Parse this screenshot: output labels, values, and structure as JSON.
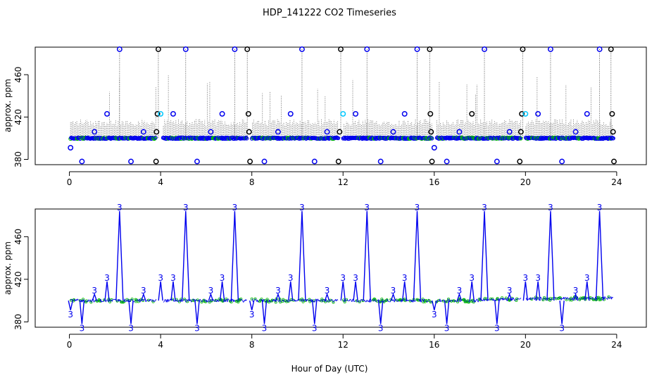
{
  "title": "HDP_141222  CO2 Timeseries",
  "chart_data": [
    {
      "type": "scatter",
      "name": "top-panel",
      "title": "HDP_141222  CO2 Timeseries",
      "xlabel": "",
      "ylabel": "approx. ppm",
      "xlim": [
        -1.5,
        25.3
      ],
      "ylim": [
        375,
        486
      ],
      "xticks": [
        0,
        4,
        8,
        12,
        16,
        20,
        24
      ],
      "yticks": [
        380,
        420,
        460
      ],
      "base_value": 400,
      "gaps": [
        [
          3.8,
          4.1
        ],
        [
          7.8,
          8.0
        ],
        [
          11.8,
          12.0
        ],
        [
          15.9,
          16.1
        ],
        [
          19.8,
          20.0
        ]
      ],
      "points": [
        {
          "x": 0.05,
          "y": 391,
          "color": "#0000ee"
        },
        {
          "x": 0.55,
          "y": 378,
          "color": "#0000ee"
        },
        {
          "x": 1.1,
          "y": 406,
          "color": "#0000ee"
        },
        {
          "x": 1.65,
          "y": 423,
          "color": "#0000ee"
        },
        {
          "x": 2.2,
          "y": 484,
          "color": "#0000ee"
        },
        {
          "x": 2.7,
          "y": 378,
          "color": "#0000ee"
        },
        {
          "x": 3.25,
          "y": 406,
          "color": "#0000ee"
        },
        {
          "x": 3.8,
          "y": 378,
          "color": "#000000"
        },
        {
          "x": 3.82,
          "y": 406,
          "color": "#000000"
        },
        {
          "x": 3.86,
          "y": 423,
          "color": "#000000"
        },
        {
          "x": 3.9,
          "y": 484,
          "color": "#000000"
        },
        {
          "x": 4.0,
          "y": 423,
          "color": "#00c8ff"
        },
        {
          "x": 4.55,
          "y": 423,
          "color": "#0000ee"
        },
        {
          "x": 5.1,
          "y": 484,
          "color": "#0000ee"
        },
        {
          "x": 5.6,
          "y": 378,
          "color": "#0000ee"
        },
        {
          "x": 6.2,
          "y": 406,
          "color": "#0000ee"
        },
        {
          "x": 6.7,
          "y": 423,
          "color": "#0000ee"
        },
        {
          "x": 7.25,
          "y": 484,
          "color": "#0000ee"
        },
        {
          "x": 7.8,
          "y": 484,
          "color": "#000000"
        },
        {
          "x": 7.85,
          "y": 423,
          "color": "#000000"
        },
        {
          "x": 7.88,
          "y": 406,
          "color": "#000000"
        },
        {
          "x": 7.92,
          "y": 378,
          "color": "#000000"
        },
        {
          "x": 8.55,
          "y": 378,
          "color": "#0000ee"
        },
        {
          "x": 9.15,
          "y": 406,
          "color": "#0000ee"
        },
        {
          "x": 9.7,
          "y": 423,
          "color": "#0000ee"
        },
        {
          "x": 10.2,
          "y": 484,
          "color": "#0000ee"
        },
        {
          "x": 10.75,
          "y": 378,
          "color": "#0000ee"
        },
        {
          "x": 11.3,
          "y": 406,
          "color": "#0000ee"
        },
        {
          "x": 11.8,
          "y": 378,
          "color": "#000000"
        },
        {
          "x": 11.85,
          "y": 406,
          "color": "#000000"
        },
        {
          "x": 11.9,
          "y": 484,
          "color": "#000000"
        },
        {
          "x": 12.0,
          "y": 423,
          "color": "#00c8ff"
        },
        {
          "x": 12.55,
          "y": 423,
          "color": "#0000ee"
        },
        {
          "x": 13.05,
          "y": 484,
          "color": "#0000ee"
        },
        {
          "x": 13.65,
          "y": 378,
          "color": "#0000ee"
        },
        {
          "x": 14.2,
          "y": 406,
          "color": "#0000ee"
        },
        {
          "x": 14.7,
          "y": 423,
          "color": "#0000ee"
        },
        {
          "x": 15.25,
          "y": 484,
          "color": "#0000ee"
        },
        {
          "x": 15.8,
          "y": 484,
          "color": "#000000"
        },
        {
          "x": 15.83,
          "y": 423,
          "color": "#000000"
        },
        {
          "x": 15.86,
          "y": 406,
          "color": "#000000"
        },
        {
          "x": 15.9,
          "y": 378,
          "color": "#000000"
        },
        {
          "x": 16.0,
          "y": 391,
          "color": "#0000ee"
        },
        {
          "x": 16.55,
          "y": 378,
          "color": "#0000ee"
        },
        {
          "x": 17.1,
          "y": 406,
          "color": "#0000ee"
        },
        {
          "x": 17.65,
          "y": 423,
          "color": "#000000"
        },
        {
          "x": 18.2,
          "y": 484,
          "color": "#0000ee"
        },
        {
          "x": 18.75,
          "y": 378,
          "color": "#0000ee"
        },
        {
          "x": 19.3,
          "y": 406,
          "color": "#0000ee"
        },
        {
          "x": 19.75,
          "y": 378,
          "color": "#000000"
        },
        {
          "x": 19.8,
          "y": 406,
          "color": "#000000"
        },
        {
          "x": 19.84,
          "y": 423,
          "color": "#000000"
        },
        {
          "x": 19.88,
          "y": 484,
          "color": "#000000"
        },
        {
          "x": 20.0,
          "y": 423,
          "color": "#00c8ff"
        },
        {
          "x": 20.55,
          "y": 423,
          "color": "#0000ee"
        },
        {
          "x": 21.1,
          "y": 484,
          "color": "#0000ee"
        },
        {
          "x": 21.6,
          "y": 378,
          "color": "#0000ee"
        },
        {
          "x": 22.2,
          "y": 406,
          "color": "#0000ee"
        },
        {
          "x": 22.7,
          "y": 423,
          "color": "#0000ee"
        },
        {
          "x": 23.25,
          "y": 484,
          "color": "#0000ee"
        },
        {
          "x": 23.75,
          "y": 484,
          "color": "#000000"
        },
        {
          "x": 23.8,
          "y": 423,
          "color": "#000000"
        },
        {
          "x": 23.84,
          "y": 406,
          "color": "#000000"
        },
        {
          "x": 23.88,
          "y": 378,
          "color": "#000000"
        }
      ]
    },
    {
      "type": "line",
      "name": "bottom-panel",
      "title": "",
      "xlabel": "Hour of Day (UTC)",
      "ylabel": "approx. ppm",
      "xlim": [
        -1.5,
        25.3
      ],
      "ylim": [
        375,
        486
      ],
      "xticks": [
        0,
        4,
        8,
        12,
        16,
        20,
        24
      ],
      "yticks": [
        380,
        420,
        460
      ],
      "marker": "3",
      "base_value": 400,
      "labels": [
        {
          "x": 0.05,
          "y": 391
        },
        {
          "x": 0.55,
          "y": 378
        },
        {
          "x": 1.1,
          "y": 406
        },
        {
          "x": 1.65,
          "y": 418
        },
        {
          "x": 2.2,
          "y": 484
        },
        {
          "x": 2.7,
          "y": 378
        },
        {
          "x": 3.25,
          "y": 406
        },
        {
          "x": 4.0,
          "y": 418
        },
        {
          "x": 4.55,
          "y": 418
        },
        {
          "x": 5.1,
          "y": 484
        },
        {
          "x": 5.6,
          "y": 378
        },
        {
          "x": 6.2,
          "y": 406
        },
        {
          "x": 6.7,
          "y": 418
        },
        {
          "x": 7.25,
          "y": 484
        },
        {
          "x": 8.0,
          "y": 391
        },
        {
          "x": 8.55,
          "y": 378
        },
        {
          "x": 9.15,
          "y": 406
        },
        {
          "x": 9.7,
          "y": 418
        },
        {
          "x": 10.2,
          "y": 484
        },
        {
          "x": 10.75,
          "y": 378
        },
        {
          "x": 11.3,
          "y": 406
        },
        {
          "x": 12.0,
          "y": 418
        },
        {
          "x": 12.55,
          "y": 418
        },
        {
          "x": 13.05,
          "y": 484
        },
        {
          "x": 13.65,
          "y": 378
        },
        {
          "x": 14.2,
          "y": 406
        },
        {
          "x": 14.7,
          "y": 418
        },
        {
          "x": 15.25,
          "y": 484
        },
        {
          "x": 16.0,
          "y": 391
        },
        {
          "x": 16.55,
          "y": 378
        },
        {
          "x": 17.1,
          "y": 406
        },
        {
          "x": 17.65,
          "y": 418
        },
        {
          "x": 18.2,
          "y": 484
        },
        {
          "x": 18.75,
          "y": 378
        },
        {
          "x": 19.3,
          "y": 406
        },
        {
          "x": 20.0,
          "y": 418
        },
        {
          "x": 20.55,
          "y": 418
        },
        {
          "x": 21.1,
          "y": 484
        },
        {
          "x": 21.6,
          "y": 378
        },
        {
          "x": 22.2,
          "y": 406
        },
        {
          "x": 22.7,
          "y": 418
        },
        {
          "x": 23.25,
          "y": 484
        }
      ]
    }
  ]
}
